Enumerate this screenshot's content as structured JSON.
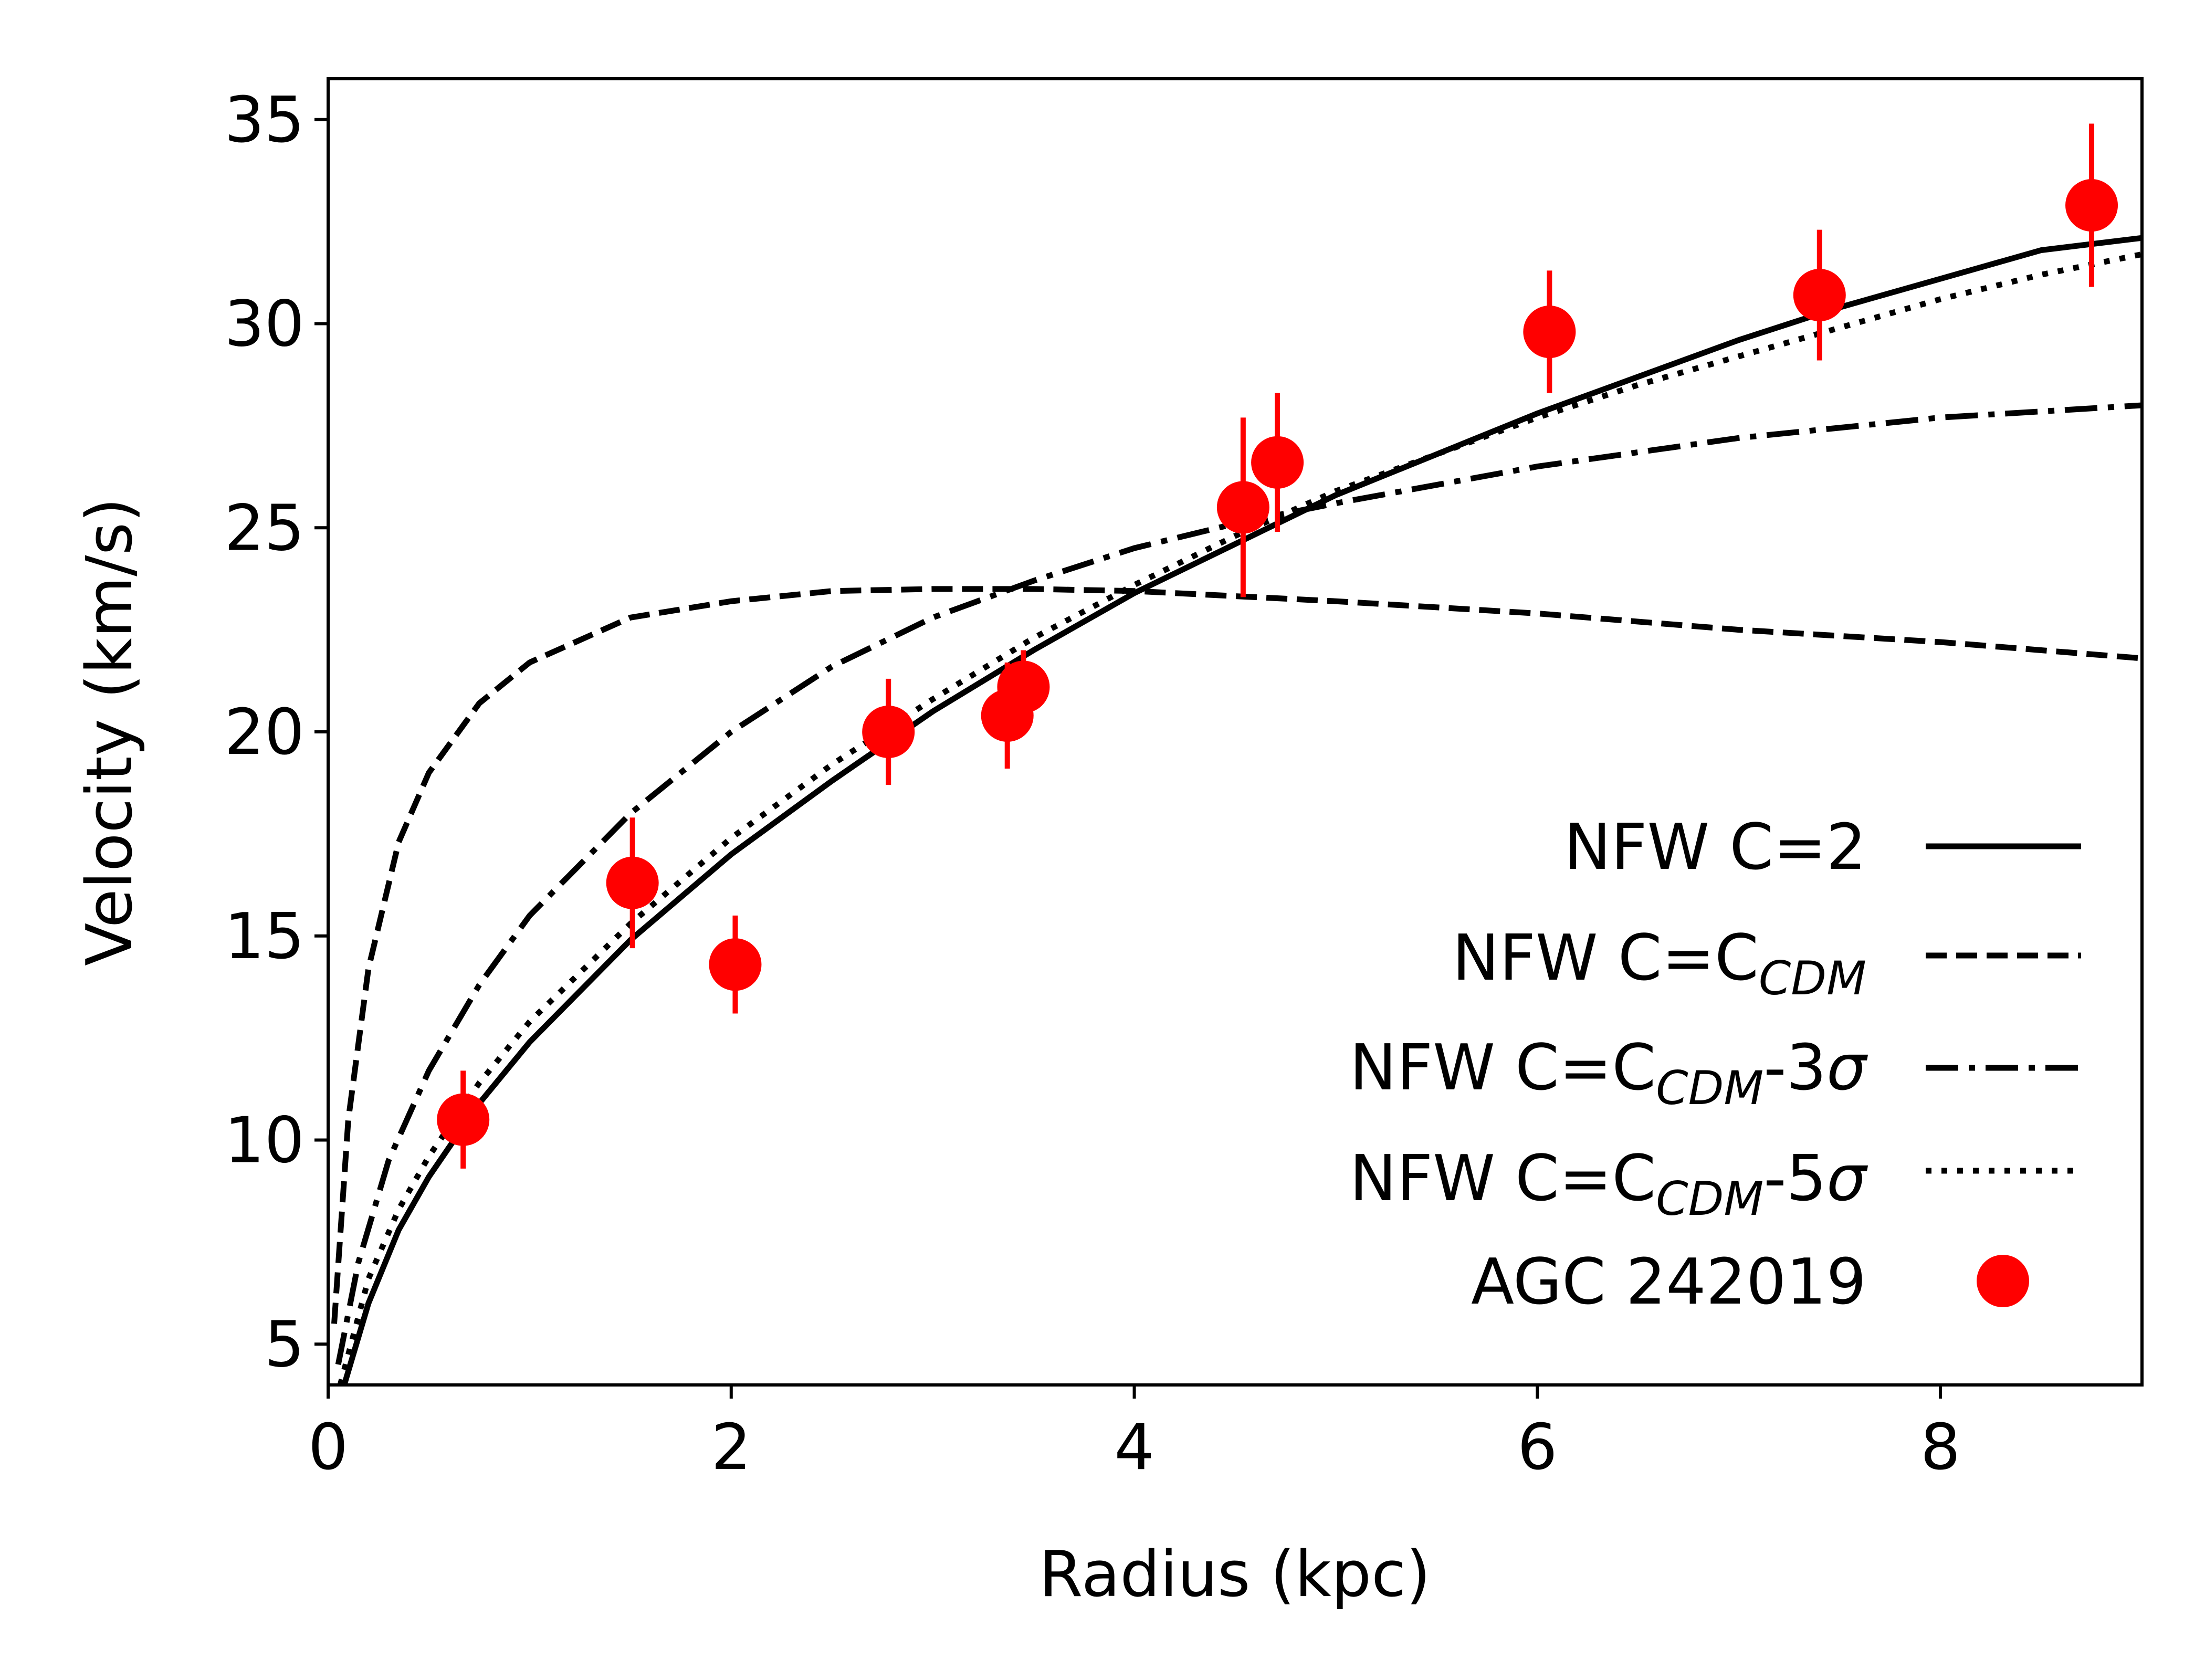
{
  "chart_data": {
    "type": "line",
    "title": "",
    "xlabel": "Radius (kpc)",
    "ylabel": "Velocity (km/s)",
    "xlim": [
      0,
      9
    ],
    "ylim": [
      4,
      36
    ],
    "xticks": [
      0,
      2,
      4,
      6,
      8
    ],
    "yticks": [
      5,
      10,
      15,
      20,
      25,
      30,
      35
    ],
    "grid": false,
    "legend_position": "lower-right",
    "series": [
      {
        "name": "NFW C=2",
        "style": "solid",
        "color": "#000000",
        "x": [
          0.08,
          0.2,
          0.35,
          0.5,
          0.75,
          1.0,
          1.5,
          2.0,
          2.5,
          3.0,
          3.5,
          4.0,
          4.5,
          5.0,
          5.5,
          6.0,
          6.5,
          7.0,
          7.5,
          8.0,
          8.5,
          9.0
        ],
        "y": [
          4.0,
          6.0,
          7.8,
          9.1,
          10.9,
          12.4,
          14.9,
          17.0,
          18.8,
          20.5,
          22.0,
          23.4,
          24.6,
          25.8,
          26.8,
          27.8,
          28.7,
          29.6,
          30.4,
          31.1,
          31.8,
          32.1
        ]
      },
      {
        "name": "NFW C=C_CDM",
        "label_main": "NFW C=C",
        "label_sub": "CDM",
        "style": "dashed",
        "color": "#000000",
        "x": [
          0.03,
          0.1,
          0.2,
          0.35,
          0.5,
          0.75,
          1.0,
          1.5,
          2.0,
          2.5,
          3.0,
          3.5,
          4.0,
          5.0,
          6.0,
          7.0,
          8.0,
          9.0
        ],
        "y": [
          5.5,
          10.5,
          14.2,
          17.3,
          19.0,
          20.7,
          21.7,
          22.8,
          23.2,
          23.45,
          23.5,
          23.5,
          23.45,
          23.2,
          22.9,
          22.5,
          22.2,
          21.8
        ]
      },
      {
        "name": "NFW C=C_CDM-3σ",
        "label_main": "NFW C=C",
        "label_sub": "CDM",
        "label_tail": "-3",
        "label_sym": "σ",
        "style": "dashdot",
        "color": "#000000",
        "x": [
          0.05,
          0.15,
          0.3,
          0.5,
          0.75,
          1.0,
          1.5,
          2.0,
          2.5,
          3.0,
          3.5,
          4.0,
          4.5,
          5.0,
          6.0,
          7.0,
          8.0,
          9.0
        ],
        "y": [
          4.5,
          7.0,
          9.5,
          11.7,
          13.8,
          15.5,
          18.0,
          20.0,
          21.6,
          22.8,
          23.7,
          24.5,
          25.1,
          25.6,
          26.5,
          27.2,
          27.7,
          28.0
        ]
      },
      {
        "name": "NFW C=C_CDM-5σ",
        "label_main": "NFW C=C",
        "label_sub": "CDM",
        "label_tail": "-5",
        "label_sym": "σ",
        "style": "dotted",
        "color": "#000000",
        "x": [
          0.06,
          0.2,
          0.35,
          0.5,
          0.75,
          1.0,
          1.5,
          2.0,
          2.5,
          3.0,
          3.5,
          4.0,
          4.5,
          5.0,
          5.5,
          6.0,
          6.5,
          7.0,
          7.5,
          8.0,
          8.5,
          9.0
        ],
        "y": [
          4.0,
          6.6,
          8.3,
          9.6,
          11.4,
          12.9,
          15.3,
          17.4,
          19.2,
          20.8,
          22.3,
          23.6,
          24.8,
          25.9,
          26.8,
          27.7,
          28.5,
          29.2,
          29.9,
          30.6,
          31.2,
          31.7
        ]
      }
    ],
    "points": {
      "name": "AGC 242019",
      "color": "#ff0000",
      "x": [
        0.67,
        1.51,
        2.02,
        2.78,
        3.37,
        3.45,
        4.54,
        4.71,
        6.06,
        7.4,
        8.75
      ],
      "y": [
        10.5,
        16.3,
        14.3,
        20.0,
        20.4,
        21.1,
        25.5,
        26.6,
        29.8,
        30.7,
        32.9
      ],
      "err": [
        1.2,
        1.6,
        1.2,
        1.3,
        1.3,
        0.9,
        2.2,
        1.7,
        1.5,
        1.6,
        2.0
      ]
    }
  }
}
